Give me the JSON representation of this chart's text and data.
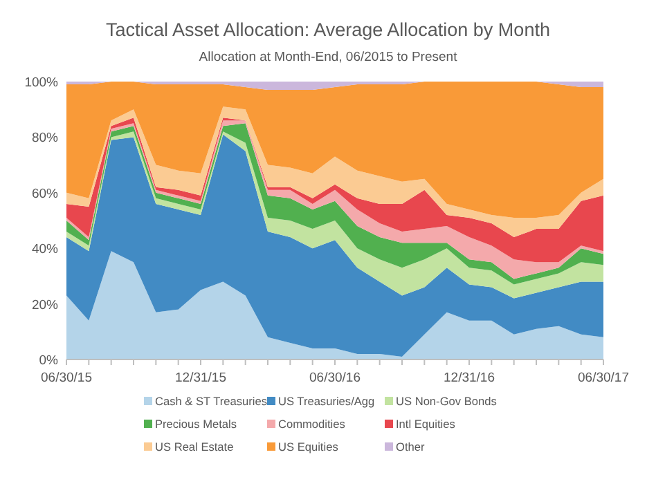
{
  "chart_data": {
    "type": "area",
    "title": "Tactical Asset Allocation: Average Allocation by Month",
    "subtitle": "Allocation at Month-End, 06/2015 to Present",
    "categories": [
      "06/30/15",
      null,
      null,
      null,
      null,
      null,
      "12/31/15",
      null,
      null,
      null,
      null,
      null,
      "06/30/16",
      null,
      null,
      null,
      null,
      null,
      "12/31/16",
      null,
      null,
      null,
      null,
      null,
      "06/30/17"
    ],
    "stacked": true,
    "ylim": [
      0,
      100
    ],
    "yticks": [
      {
        "value": 0,
        "label": "0%"
      },
      {
        "value": 20,
        "label": "20%"
      },
      {
        "value": 40,
        "label": "40%"
      },
      {
        "value": 60,
        "label": "60%"
      },
      {
        "value": 80,
        "label": "80%"
      },
      {
        "value": 100,
        "label": "100%"
      }
    ],
    "grid": false,
    "legend": "bottom",
    "series": [
      {
        "name": "Cash & ST Treasuries",
        "color": "#b4d4e9",
        "values": [
          23,
          14,
          39,
          35,
          17,
          18,
          25,
          28,
          23,
          8,
          6,
          4,
          4,
          2,
          2,
          1,
          9,
          17,
          14,
          14,
          9,
          11,
          12,
          9,
          8
        ]
      },
      {
        "name": "US Treasuries/Agg",
        "color": "#428bc4",
        "values": [
          21,
          25,
          40,
          45,
          39,
          36,
          27,
          53,
          52,
          38,
          38,
          36,
          39,
          31,
          26,
          22,
          17,
          16,
          13,
          12,
          13,
          13,
          14,
          19,
          20
        ]
      },
      {
        "name": "US Non-Gov Bonds",
        "color": "#c2e3a0",
        "values": [
          2,
          2,
          1,
          2,
          2,
          2,
          2,
          1,
          3,
          5,
          6,
          7,
          7,
          7,
          8,
          10,
          10,
          7,
          6,
          6,
          5,
          5,
          5,
          7,
          6
        ]
      },
      {
        "name": "Precious Metals",
        "color": "#51b04f",
        "values": [
          4,
          2,
          2,
          2,
          2,
          2,
          2,
          2,
          7,
          8,
          8,
          7,
          7,
          8,
          8,
          9,
          6,
          2,
          3,
          3,
          2,
          2,
          2,
          5,
          4
        ]
      },
      {
        "name": "Commodities",
        "color": "#f4a9ab",
        "values": [
          1,
          1,
          1,
          1,
          1,
          1,
          1,
          2,
          1,
          2,
          3,
          2,
          4,
          6,
          5,
          4,
          5,
          6,
          8,
          6,
          7,
          4,
          2,
          1,
          1
        ]
      },
      {
        "name": "Intl Equities",
        "color": "#e8474e",
        "values": [
          5,
          11,
          1,
          2,
          1,
          2,
          2,
          1,
          0,
          1,
          1,
          2,
          2,
          4,
          7,
          10,
          14,
          4,
          7,
          8,
          8,
          12,
          12,
          16,
          20
        ]
      },
      {
        "name": "US Real Estate",
        "color": "#fbcb93",
        "values": [
          4,
          3,
          2,
          3,
          8,
          7,
          8,
          4,
          4,
          8,
          7,
          9,
          10,
          10,
          10,
          8,
          4,
          4,
          3,
          3,
          7,
          4,
          5,
          3,
          6
        ]
      },
      {
        "name": "US Equities",
        "color": "#f99a38",
        "values": [
          39,
          41,
          14,
          10,
          29,
          31,
          32,
          8,
          8,
          27,
          28,
          30,
          25,
          31,
          33,
          35,
          35,
          44,
          46,
          48,
          49,
          49,
          47,
          38,
          33
        ]
      },
      {
        "name": "Other",
        "color": "#cbb7dc",
        "values": [
          1,
          1,
          0,
          0,
          1,
          1,
          1,
          1,
          2,
          3,
          3,
          3,
          2,
          1,
          1,
          1,
          0,
          0,
          0,
          0,
          0,
          0,
          1,
          2,
          2
        ]
      }
    ]
  }
}
